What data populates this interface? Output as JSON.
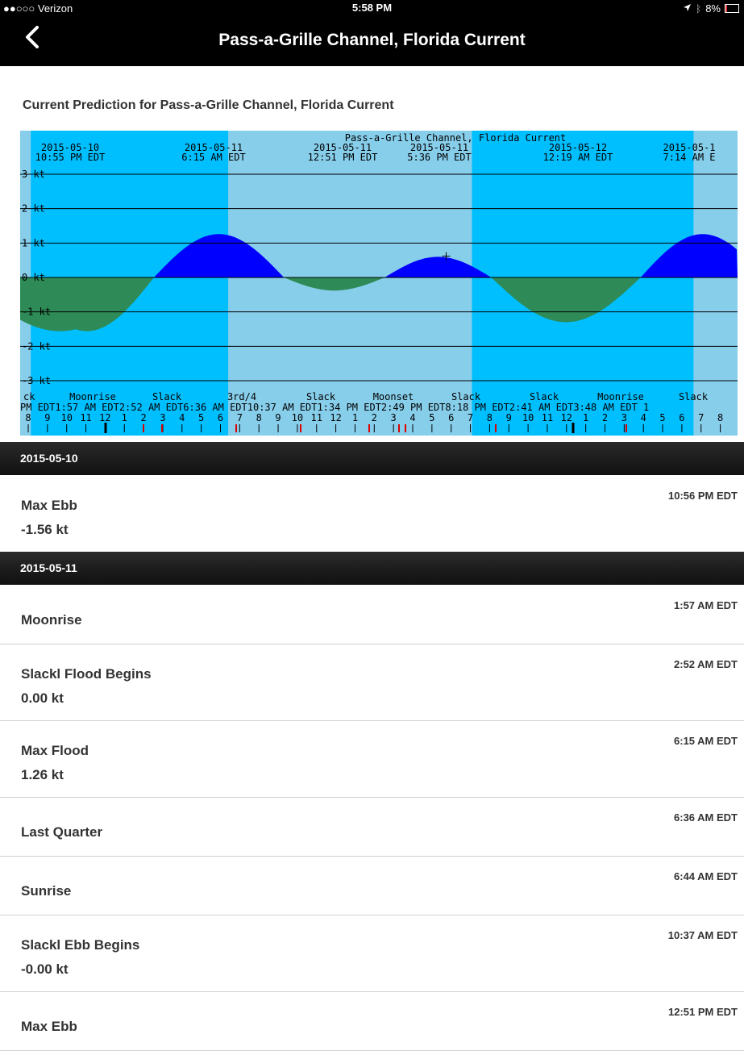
{
  "status_bar": {
    "carrier": "●●○○○ Verizon",
    "time": "5:58 PM",
    "battery": "8%",
    "battery_level": 0.08
  },
  "nav": {
    "title": "Pass-a-Grille Channel, Florida Current",
    "back_icon": "chevron-left-icon"
  },
  "page": {
    "heading": "Current Prediction for Pass-a-Grille Channel, Florida Current"
  },
  "chart_data": {
    "type": "area",
    "title": "Pass-a-Grille Channel, Florida Current",
    "ylabel": "kt",
    "ylim": [
      -3,
      3
    ],
    "y_ticks": [
      "3 kt",
      "2 kt",
      "1 kt",
      "0 kt",
      "-1 kt",
      "-2 kt",
      "-3 kt"
    ],
    "colors": {
      "day": "#87ceeb",
      "night": "#00bfff",
      "flood": "#0000ff",
      "ebb": "#2e8b57"
    },
    "top_labels": [
      {
        "date": "2015-05-10",
        "time": "10:55 PM EDT"
      },
      {
        "date": "2015-05-11",
        "time": "6:15 AM EDT"
      },
      {
        "date": "2015-05-11",
        "time": "12:51 PM EDT"
      },
      {
        "date": "2015-05-11",
        "time": "5:36 PM EDT"
      },
      {
        "date": "2015-05-12",
        "time": "12:19 AM EDT"
      },
      {
        "date": "2015-05-1",
        "time": "7:14 AM E"
      }
    ],
    "bottom_event_names": [
      "ck",
      "Moonrise",
      "Slack",
      "3rd/4",
      "Slack",
      "Moonset",
      "Slack",
      "Slack",
      "Moonrise",
      "Slack"
    ],
    "bottom_event_times": "PM EDT1:57 AM EDT2:52 AM EDT6:36 AM EDT10:37 AM EDT1:34 PM EDT2:49 PM EDT8:18 PM EDT2:41 AM EDT3:48 AM EDT 1",
    "hour_labels": [
      "8",
      "9",
      "10",
      "11",
      "12",
      "1",
      "2",
      "3",
      "4",
      "5",
      "6",
      "7",
      "8",
      "9",
      "10",
      "11",
      "12",
      "1",
      "2",
      "3",
      "4",
      "5",
      "6",
      "7",
      "8",
      "9",
      "10",
      "11",
      "12",
      "1",
      "2",
      "3",
      "4",
      "5",
      "6",
      "7",
      "8"
    ],
    "x_hours_start": 20,
    "points": [
      {
        "t": 20.0,
        "kt": 0.0
      },
      {
        "t": 22.9,
        "kt": -1.56
      },
      {
        "t": 26.9,
        "kt": 0.0
      },
      {
        "t": 30.25,
        "kt": 1.26
      },
      {
        "t": 33.6,
        "kt": 0.0
      },
      {
        "t": 36.85,
        "kt": -0.38
      },
      {
        "t": 38.8,
        "kt": 0.0
      },
      {
        "t": 41.6,
        "kt": 0.6
      },
      {
        "t": 44.3,
        "kt": 0.0
      },
      {
        "t": 48.32,
        "kt": -1.3
      },
      {
        "t": 52.0,
        "kt": 0.0
      },
      {
        "t": 55.2,
        "kt": 1.26
      },
      {
        "t": 57.0,
        "kt": 1.0
      }
    ],
    "night_bands": [
      [
        20,
        20.3
      ],
      [
        20.3,
        30.73
      ],
      [
        43.3,
        54.7
      ],
      [
        54.7,
        57
      ]
    ],
    "night_spans": [
      {
        "start": 20.3,
        "end": 30.73
      },
      {
        "start": 43.3,
        "end": 54.73
      }
    ]
  },
  "days": [
    {
      "date": "2015-05-10",
      "events": [
        {
          "name": "Max Ebb",
          "value": "-1.56 kt",
          "time": "10:56 PM EDT"
        }
      ]
    },
    {
      "date": "2015-05-11",
      "events": [
        {
          "name": "Moonrise",
          "value": "",
          "time": "1:57 AM EDT"
        },
        {
          "name": "Slackl Flood Begins",
          "value": "0.00 kt",
          "time": "2:52 AM EDT"
        },
        {
          "name": "Max Flood",
          "value": "1.26 kt",
          "time": "6:15 AM EDT"
        },
        {
          "name": "Last Quarter",
          "value": "",
          "time": "6:36 AM EDT"
        },
        {
          "name": "Sunrise",
          "value": "",
          "time": "6:44 AM EDT"
        },
        {
          "name": "Slackl Ebb Begins",
          "value": "-0.00 kt",
          "time": "10:37 AM EDT"
        },
        {
          "name": "Max Ebb",
          "value": "",
          "time": "12:51 PM EDT"
        }
      ]
    }
  ]
}
